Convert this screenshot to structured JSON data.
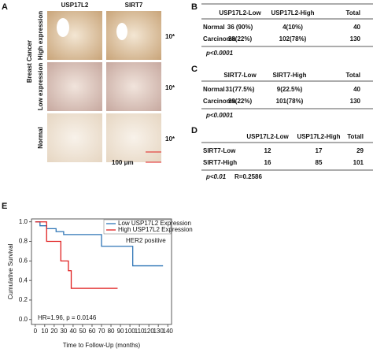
{
  "panel_a": {
    "label": "A",
    "columns": [
      "USP17L2",
      "SIRT7"
    ],
    "group_label": "Breast Cancer",
    "rows": [
      "High expression",
      "Low expression",
      "Normal"
    ],
    "magnifications": [
      "10*",
      "10*",
      "10*"
    ],
    "scale_bar": "100 μm"
  },
  "panel_b": {
    "label": "B",
    "header": [
      "USP17L2-Low",
      "USP17L2-High",
      "Total"
    ],
    "rows": [
      [
        "Normal",
        "36 (90%)",
        "4(10%)",
        "40"
      ],
      [
        "Carcinoma",
        "28(22%)",
        "102(78%)",
        "130"
      ]
    ],
    "p_value": "p<0.0001"
  },
  "panel_c": {
    "label": "C",
    "header": [
      "SIRT7-Low",
      "SIRT7-High",
      "Total"
    ],
    "rows": [
      [
        "Normal",
        "31(77.5%)",
        "9(22.5%)",
        "40"
      ],
      [
        "Carcinoma",
        "29(22%)",
        "101(78%)",
        "130"
      ]
    ],
    "p_value": "p<0.0001"
  },
  "panel_d": {
    "label": "D",
    "header": [
      "USP17L2-Low",
      "USP17L2-High",
      "Totall"
    ],
    "rows": [
      [
        "SIRT7-Low",
        "12",
        "17",
        "29"
      ],
      [
        "SIRT7-High",
        "16",
        "85",
        "101"
      ]
    ],
    "p_value": "p<0.01",
    "correlation": "R=0.2586"
  },
  "chart_data": {
    "type": "line",
    "panel_label": "E",
    "annotation": "HER2 positive",
    "statistics": "HR=1.96, p = 0.0146",
    "x_label": "Time to Follow-Up (months)",
    "y_label": "Cumulative Survival",
    "xlim": [
      -4,
      144
    ],
    "ylim": [
      -0.05,
      1.03
    ],
    "xticks": [
      0,
      10,
      20,
      30,
      40,
      50,
      60,
      70,
      80,
      90,
      100,
      110,
      120,
      130,
      140
    ],
    "yticks": [
      {
        "value": 0,
        "label": "0.0"
      },
      {
        "value": 0.2,
        "label": "0.2"
      },
      {
        "value": 0.4,
        "label": "0.4"
      },
      {
        "value": 0.6,
        "label": "0.6"
      },
      {
        "value": 0.8,
        "label": "0.8"
      },
      {
        "value": 1,
        "label": "1.0"
      }
    ],
    "legend": "top-right",
    "series": [
      {
        "name": "Low USP17L2 Expression",
        "color": "#2e75b6",
        "x": [
          0,
          5,
          5,
          12,
          12,
          22,
          22,
          30,
          30,
          70,
          70,
          103,
          103,
          135
        ],
        "values": [
          1,
          1,
          0.96,
          0.96,
          0.93,
          0.93,
          0.9,
          0.9,
          0.87,
          0.87,
          0.75,
          0.75,
          0.55,
          0.55
        ]
      },
      {
        "name": "High USP17L2 Expression",
        "color": "#e02020",
        "x": [
          0,
          12,
          12,
          27,
          27,
          35,
          35,
          38,
          38,
          87
        ],
        "values": [
          1,
          1,
          0.8,
          0.8,
          0.6,
          0.6,
          0.5,
          0.5,
          0.32,
          0.32
        ]
      }
    ]
  }
}
